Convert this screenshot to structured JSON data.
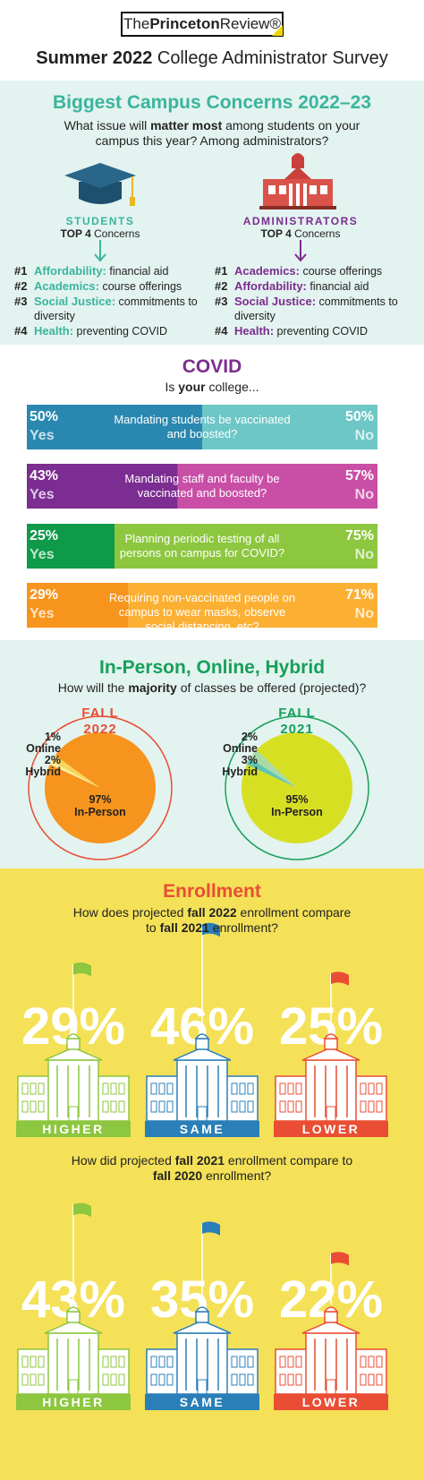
{
  "header": {
    "logo": [
      "The",
      "Princeton",
      "Review®"
    ],
    "title": [
      "Summer 2022",
      " College Administrator Survey"
    ]
  },
  "concerns": {
    "title": "Biggest Campus Concerns 2022–23",
    "question": [
      "What issue will ",
      "matter most",
      " among students on your campus this year? Among administrators?"
    ],
    "groups": [
      {
        "name": "STUDENTS",
        "subtitle": [
          "TOP 4",
          " Concerns"
        ],
        "items": [
          {
            "rank": "#1",
            "topic": "Affordability:",
            "detail": "financial aid"
          },
          {
            "rank": "#2",
            "topic": "Academics:",
            "detail": "course offerings"
          },
          {
            "rank": "#3",
            "topic": "Social Justice:",
            "detail": "commitments to diversity"
          },
          {
            "rank": "#4",
            "topic": "Health:",
            "detail": "preventing COVID"
          }
        ]
      },
      {
        "name": "ADMINISTRATORS",
        "subtitle": [
          "TOP 4",
          " Concerns"
        ],
        "items": [
          {
            "rank": "#1",
            "topic": "Academics:",
            "detail": "course offerings"
          },
          {
            "rank": "#2",
            "topic": "Affordability:",
            "detail": "financial aid"
          },
          {
            "rank": "#3",
            "topic": "Social Justice:",
            "detail": "commitments to diversity"
          },
          {
            "rank": "#4",
            "topic": "Health:",
            "detail": "preventing COVID"
          }
        ]
      }
    ]
  },
  "covid": {
    "title": "COVID",
    "subtitle": [
      "Is ",
      "your",
      " college..."
    ],
    "items": [
      {
        "text": "Mandating students be vaccinated and boosted?",
        "labels": [
          "Yes",
          "No"
        ],
        "values": [
          50,
          50
        ],
        "value_labels": [
          "50%",
          "50%"
        ],
        "colors": [
          "#2a88b0",
          "#6cc7c6"
        ]
      },
      {
        "text": "Mandating staff and faculty be vaccinated and boosted?",
        "labels": [
          "Yes",
          "No"
        ],
        "values": [
          43,
          57
        ],
        "value_labels": [
          "43%",
          "57%"
        ],
        "colors": [
          "#7c2d91",
          "#c94fa6"
        ]
      },
      {
        "text": "Planning periodic testing of all persons on campus for COVID?",
        "labels": [
          "Yes",
          "No"
        ],
        "values": [
          25,
          75
        ],
        "value_labels": [
          "25%",
          "75%"
        ],
        "colors": [
          "#0f9a4a",
          "#8dc63f"
        ]
      },
      {
        "text": "Requiring non-vaccinated people on campus to wear masks, observe social distancing, etc?",
        "labels": [
          "Yes",
          "No"
        ],
        "values": [
          29,
          71
        ],
        "value_labels": [
          "29%",
          "71%"
        ],
        "colors": [
          "#f7941d",
          "#fbb034"
        ]
      }
    ]
  },
  "modality": {
    "title": "In-Person, Online, Hybrid",
    "question": [
      "How will the ",
      "majority",
      " of classes be offered (projected)?"
    ],
    "charts": [
      {
        "type": "pie",
        "season": "FALL",
        "year": "2022",
        "categories": [
          "Online",
          "Hybrid",
          "In-Person"
        ],
        "values": [
          1,
          2,
          97
        ],
        "value_labels": [
          "1%",
          "2%",
          "97%"
        ],
        "colors": [
          "#fff3a0",
          "#f9d55c",
          "#f7941d"
        ],
        "accent": "#e94e34"
      },
      {
        "type": "pie",
        "season": "FALL",
        "year": "2021",
        "categories": [
          "Online",
          "Hybrid",
          "In-Person"
        ],
        "values": [
          2,
          3,
          95
        ],
        "value_labels": [
          "2%",
          "3%",
          "95%"
        ],
        "colors": [
          "#5fc4b0",
          "#a8dba8",
          "#d7df23"
        ],
        "accent": "#16a05a"
      }
    ]
  },
  "enrollment": {
    "title": "Enrollment",
    "comparisons": [
      {
        "question": [
          "How does projected ",
          "fall 2022",
          " enrollment compare to ",
          "fall 2021",
          " enrollment?"
        ],
        "categories": [
          "HIGHER",
          "SAME",
          "LOWER"
        ],
        "values": [
          29,
          46,
          25
        ],
        "value_labels": [
          "29%",
          "46%",
          "25%"
        ],
        "colors": [
          "#8dc63f",
          "#2a7fb8",
          "#e94e34"
        ]
      },
      {
        "question": [
          "How did projected ",
          "fall 2021",
          " enrollment compare to ",
          "fall 2020",
          " enrollment?"
        ],
        "categories": [
          "HIGHER",
          "SAME",
          "LOWER"
        ],
        "values": [
          43,
          35,
          22
        ],
        "value_labels": [
          "43%",
          "35%",
          "22%"
        ],
        "colors": [
          "#8dc63f",
          "#2a7fb8",
          "#e94e34"
        ]
      }
    ]
  }
}
